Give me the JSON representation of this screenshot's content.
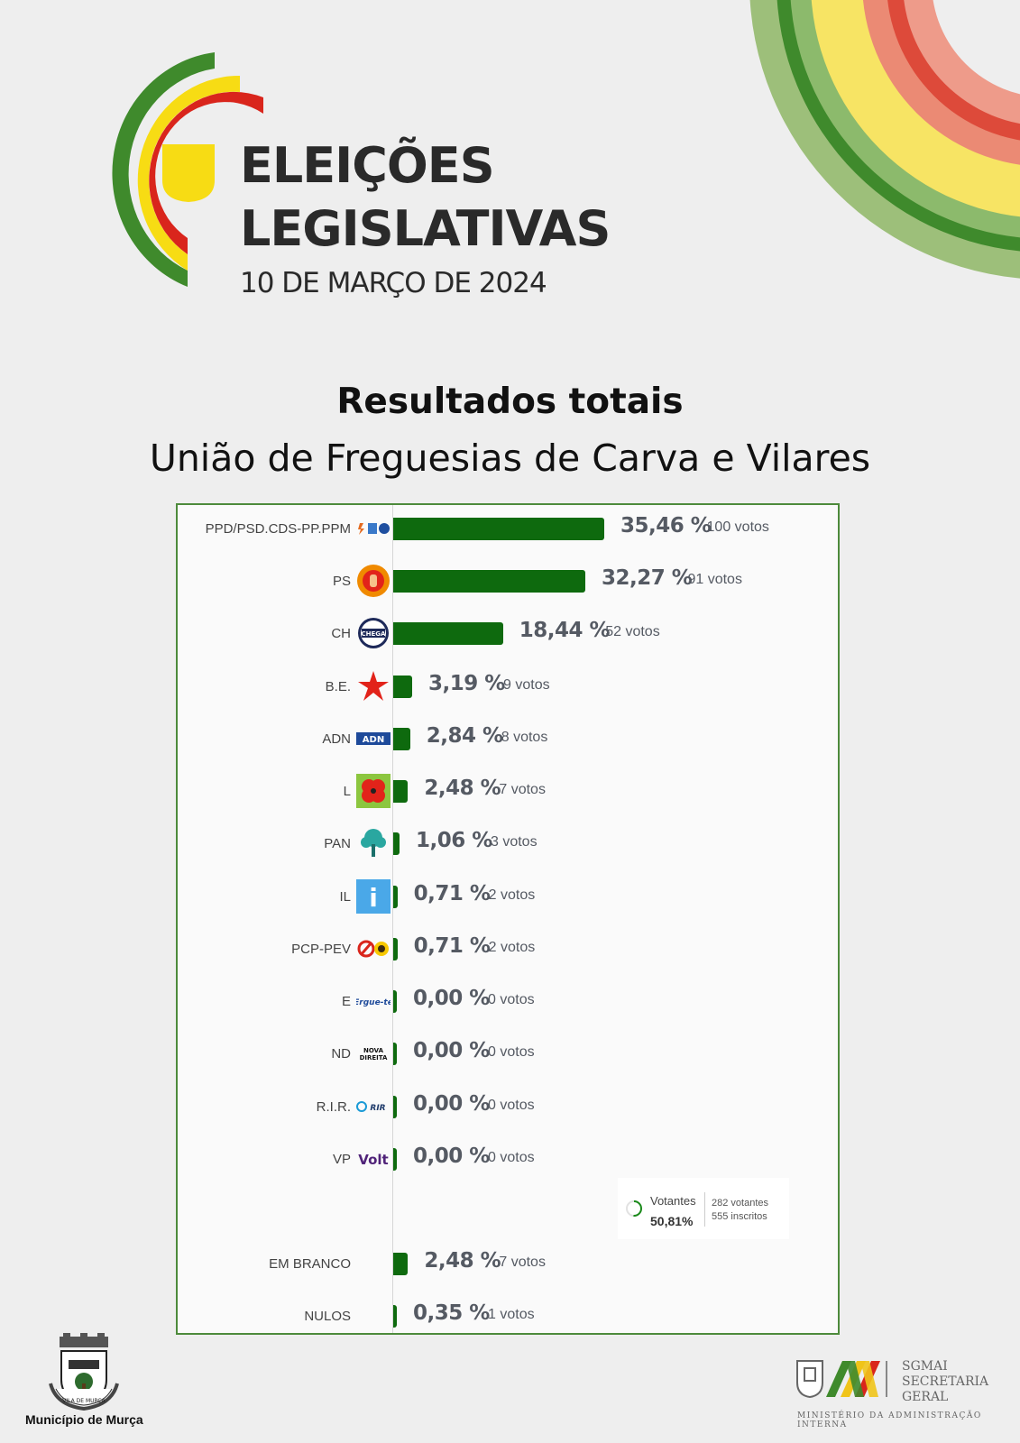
{
  "header": {
    "title_line1": "ELEIÇÕES",
    "title_line2": "LEGISLATIVAS",
    "date": "10 DE MARÇO DE 2024"
  },
  "heading": "Resultados totais",
  "subheading": "União de Freguesias de Carva e Vilares",
  "colors": {
    "bar": "#0e6a0e",
    "panel_border": "#4d8a3b",
    "logo_green": "#3f8a2c",
    "logo_yellow": "#f7dc14",
    "logo_red": "#d9251c"
  },
  "chart_data": {
    "type": "bar",
    "orientation": "horizontal",
    "title": "Resultados totais",
    "subtitle": "União de Freguesias de Carva e Vilares",
    "categories": [
      "PPD/PSD.CDS-PP.PPM",
      "PS",
      "CH",
      "B.E.",
      "ADN",
      "L",
      "PAN",
      "IL",
      "PCP-PEV",
      "E",
      "ND",
      "R.I.R.",
      "VP",
      "EM BRANCO",
      "NULOS"
    ],
    "values": [
      35.46,
      32.27,
      18.44,
      3.19,
      2.84,
      2.48,
      1.06,
      0.71,
      0.71,
      0.0,
      0.0,
      0.0,
      0.0,
      2.48,
      0.35
    ],
    "pct_labels": [
      "35,46 %",
      "32,27 %",
      "18,44 %",
      "3,19 %",
      "2,84 %",
      "2,48 %",
      "1,06 %",
      "0,71 %",
      "0,71 %",
      "0,00 %",
      "0,00 %",
      "0,00 %",
      "0,00 %",
      "2,48 %",
      "0,35 %"
    ],
    "vote_labels": [
      "100 votos",
      "91 votos",
      "52 votos",
      "9 votos",
      "8 votos",
      "7 votos",
      "3 votos",
      "2 votos",
      "2 votos",
      "0 votos",
      "0 votos",
      "0 votos",
      "0 votos",
      "7 votos",
      "1 votos"
    ],
    "votes": [
      100,
      91,
      52,
      9,
      8,
      7,
      3,
      2,
      2,
      0,
      0,
      0,
      0,
      7,
      1
    ],
    "logo_icons": [
      "psd-cds-ppm-logo-icon",
      "ps-logo-icon",
      "chega-logo-icon",
      "be-star-icon",
      "adn-logo-icon",
      "livre-poppy-icon",
      "pan-tree-icon",
      "il-logo-icon",
      "pcp-pev-logo-icon",
      "ergue-te-logo-icon",
      "nova-direita-logo-icon",
      "rir-logo-icon",
      "volt-logo-icon",
      "",
      ""
    ],
    "logo_texts": [
      "",
      "",
      "CHEGA",
      "",
      "ADN",
      "",
      "",
      "i",
      "",
      "Ergue-te",
      "NOVA DIREITA",
      "RIR",
      "Volt",
      "",
      ""
    ],
    "xlim": [
      0,
      100
    ]
  },
  "turnout": {
    "label": "Votantes",
    "percent_label": "50,81%",
    "percent": 50.81,
    "voters": "282 votantes",
    "registered": "555 inscritos"
  },
  "footer": {
    "municipality": "Município de Murça",
    "crest_text": "VILA DE MURÇA",
    "sgmai_line1": "SGMAI",
    "sgmai_line2": "SECRETARIA",
    "sgmai_line3": "GERAL",
    "ministry": "MINISTÉRIO DA ADMINISTRAÇÃO INTERNA"
  }
}
